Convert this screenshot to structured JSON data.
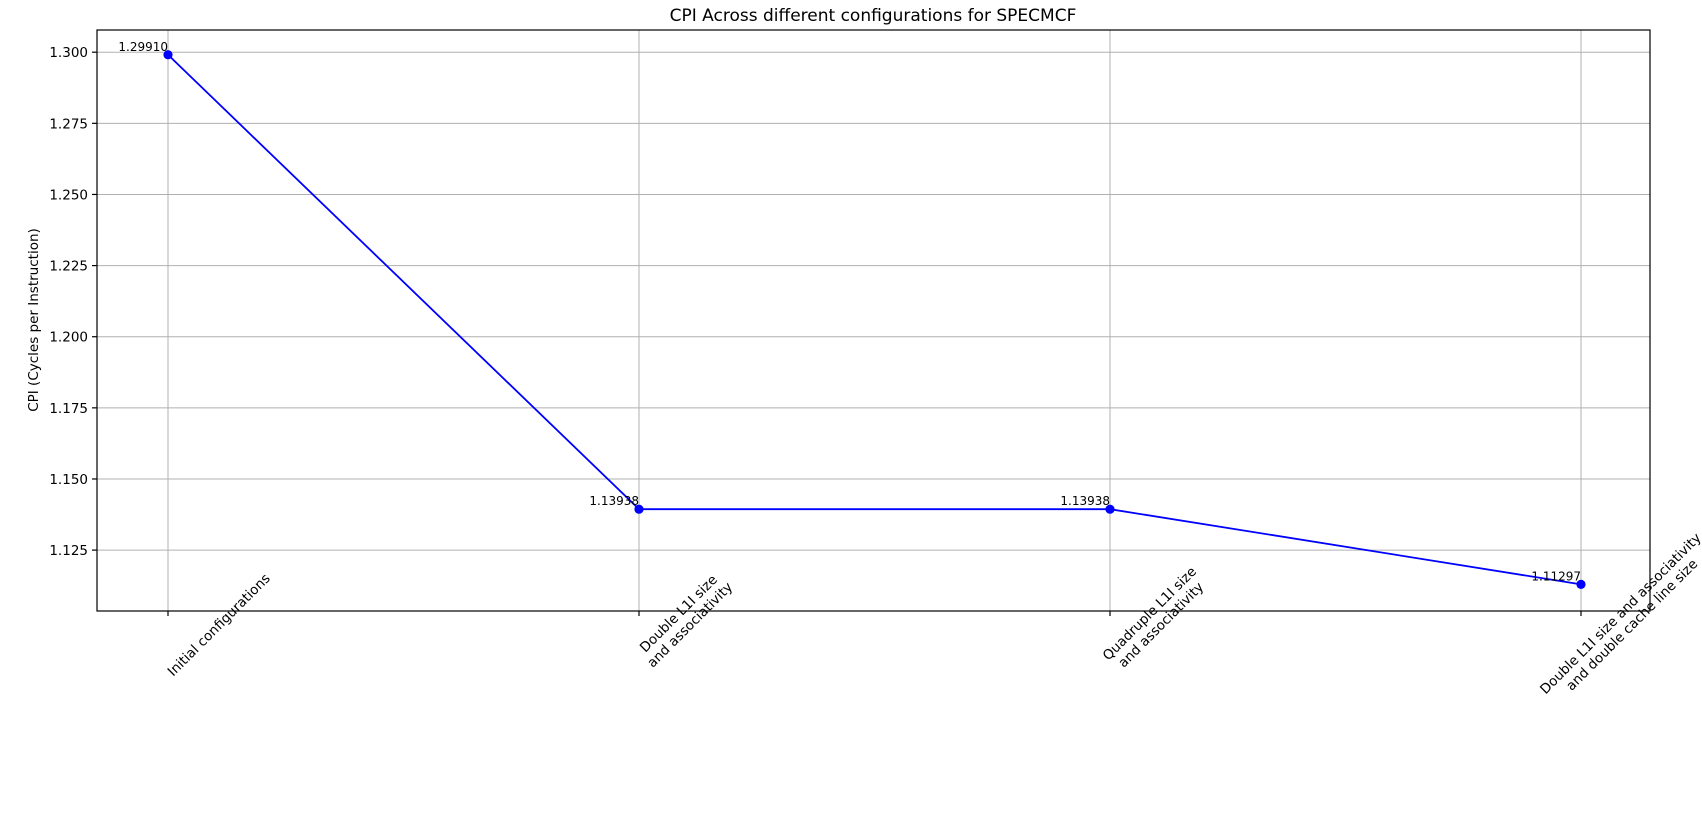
{
  "chart_data": {
    "type": "line",
    "title": "CPI Across different configurations for SPECMCF",
    "xlabel": "",
    "ylabel": "CPI (Cycles per Instruction)",
    "categories": [
      [
        "Initial configurations"
      ],
      [
        "Double L1I size",
        "and associativity"
      ],
      [
        "Quadruple L1I size",
        "and associativity"
      ],
      [
        "Double L1I size and associativity",
        "and double cache line size"
      ]
    ],
    "series": [
      {
        "values": [
          1.2991,
          1.13938,
          1.13938,
          1.11297
        ],
        "labels": [
          "1.29910",
          "1.13938",
          "1.13938",
          "1.11297"
        ],
        "color": "#0000ff"
      }
    ],
    "ylim": [
      1.1036,
      1.3078
    ],
    "yticks": [
      1.125,
      1.15,
      1.175,
      1.2,
      1.225,
      1.25,
      1.275,
      1.3
    ],
    "ytick_labels": [
      "1.125",
      "1.150",
      "1.175",
      "1.200",
      "1.225",
      "1.250",
      "1.275",
      "1.300"
    ],
    "grid": true,
    "marker": "circle",
    "xtick_rotation": 45
  }
}
